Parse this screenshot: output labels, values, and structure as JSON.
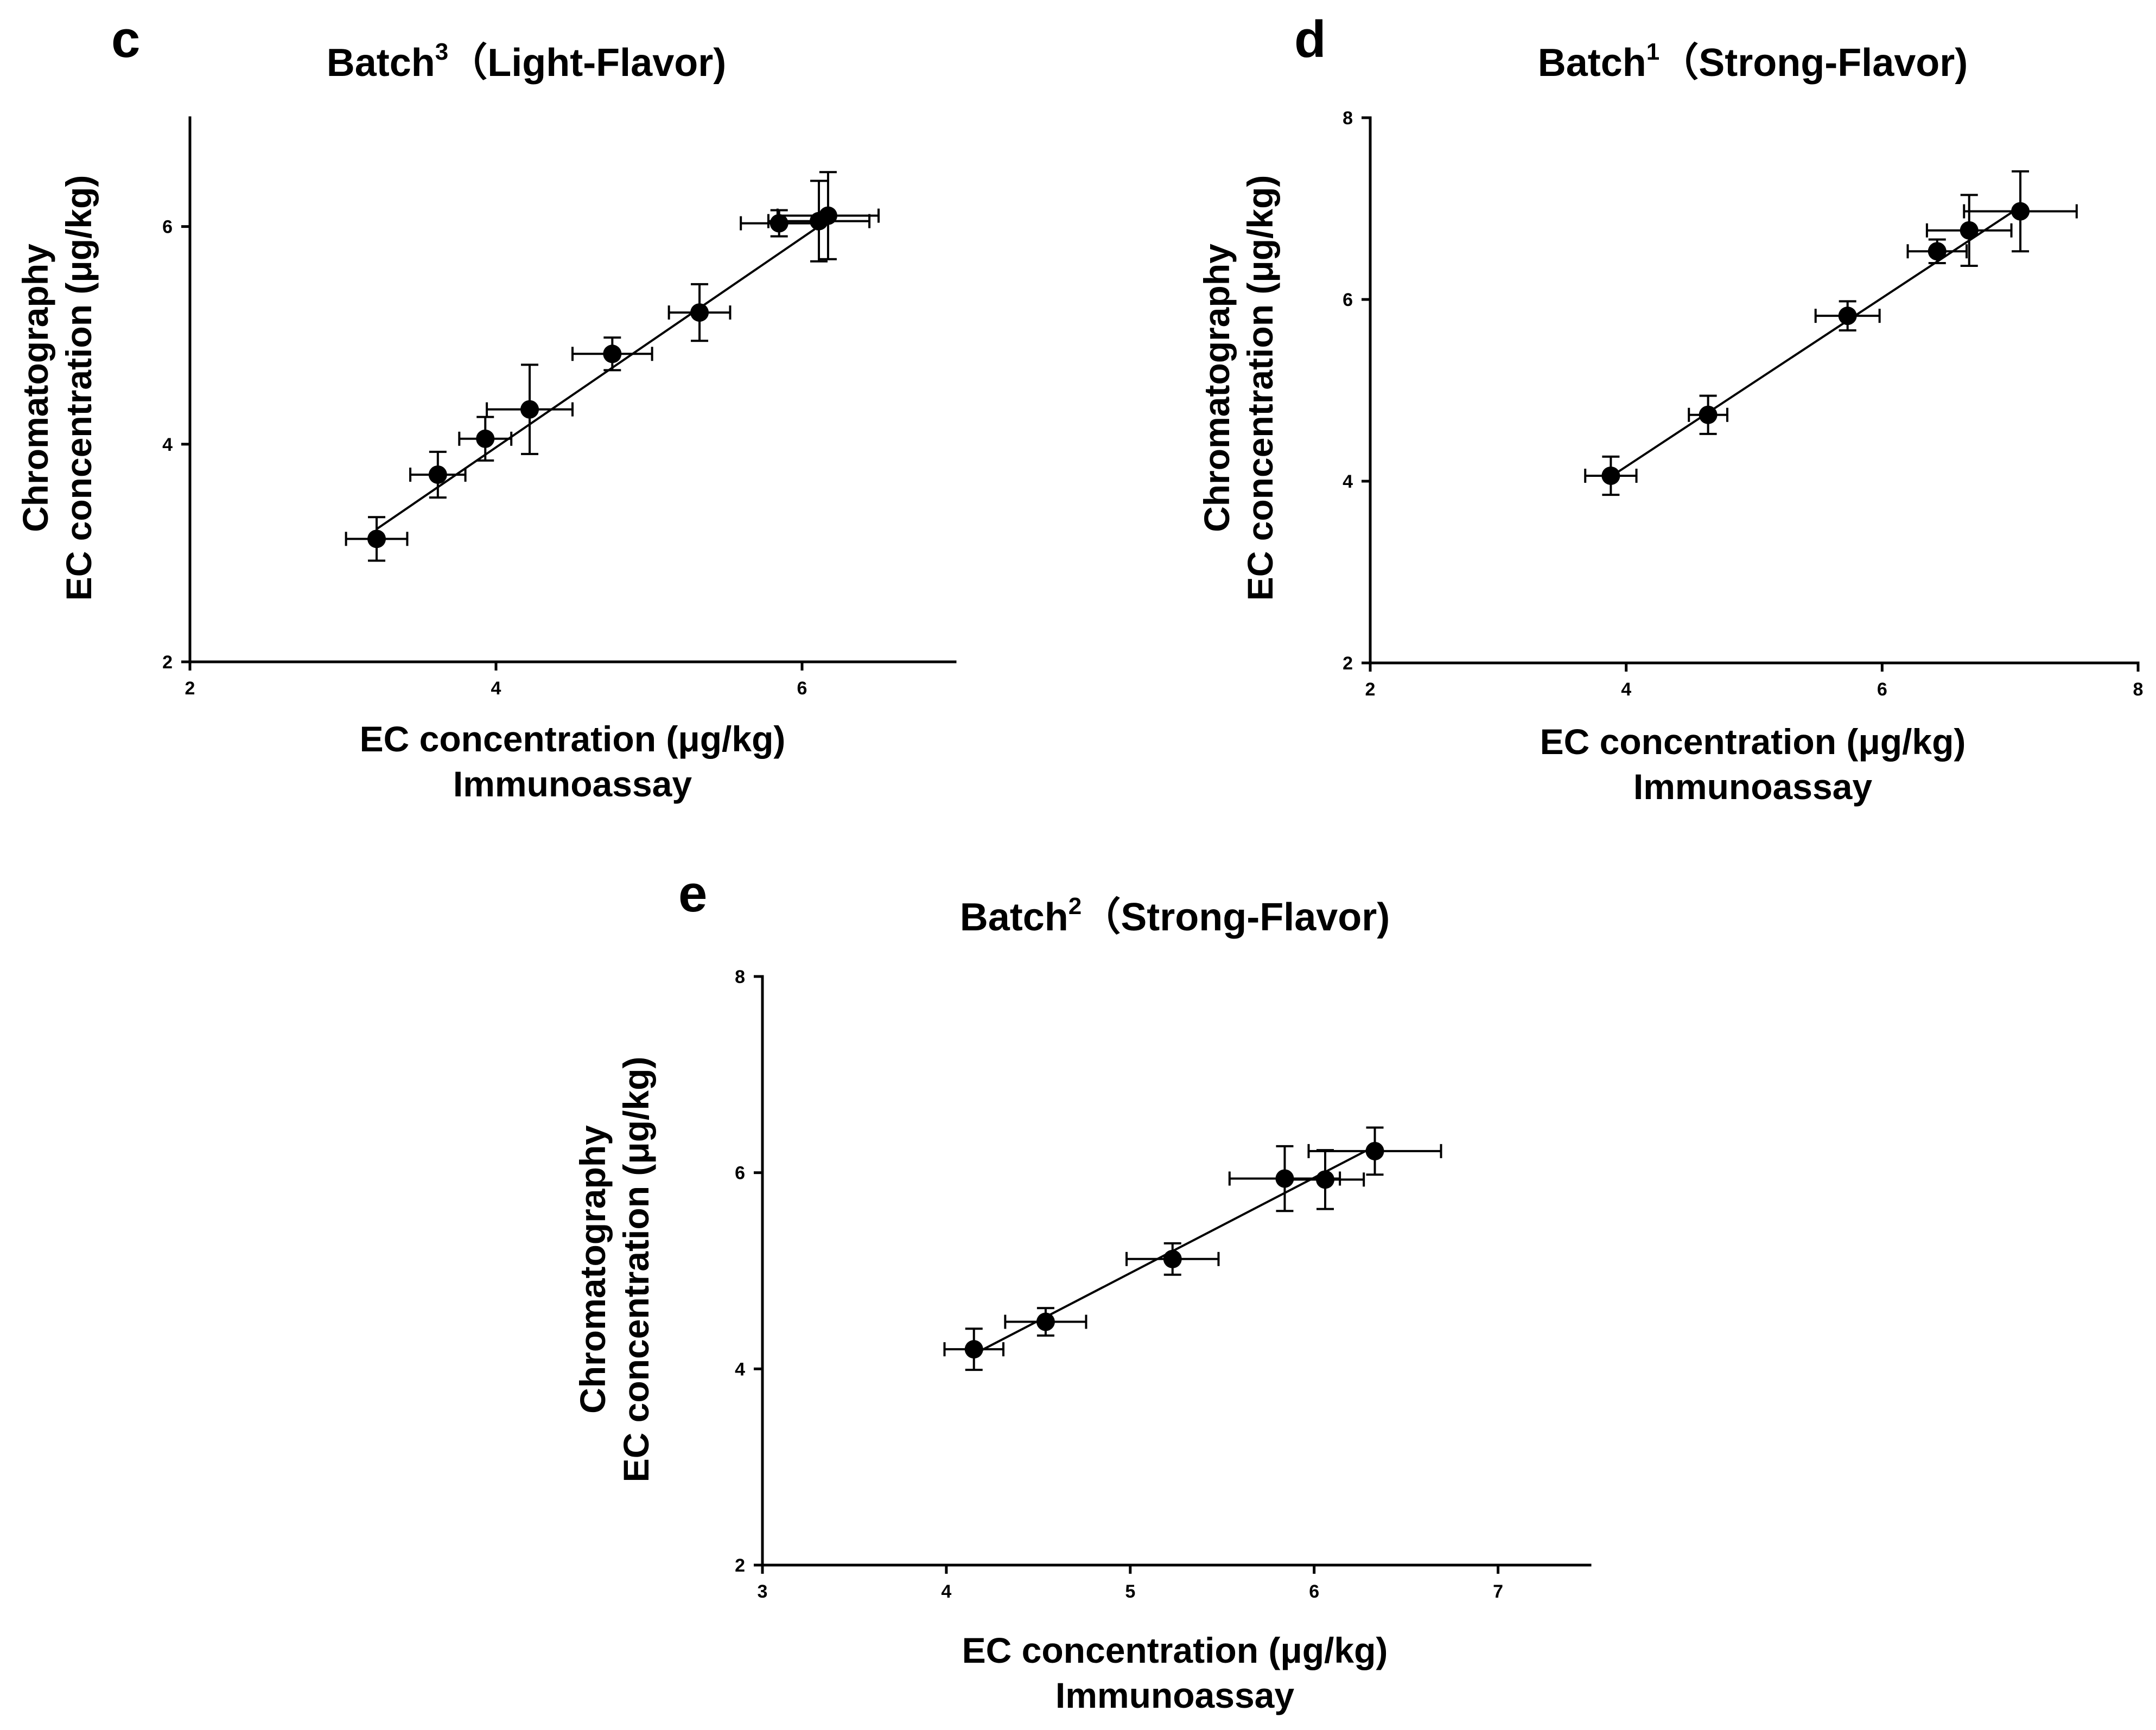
{
  "chart_data": [
    {
      "panel": "c",
      "type": "scatter",
      "title": "Batch",
      "title_superscript": "3",
      "title_suffix": "（Light-Flavor)",
      "xlabel": [
        "EC concentration (μg/kg)",
        "Immunoassay"
      ],
      "ylabel": [
        "Chromatography",
        "EC concentration (μg/kg)"
      ],
      "xlim": [
        2,
        7
      ],
      "ylim": [
        2,
        7
      ],
      "xticks": [
        2,
        4,
        6
      ],
      "yticks": [
        2,
        4,
        6
      ],
      "xtick_labels": [
        "2",
        "4",
        "6"
      ],
      "ytick_labels": [
        "2",
        "4",
        "6"
      ],
      "points": [
        {
          "x": 3.22,
          "y": 3.13,
          "xerr": 0.2,
          "yerr": 0.2
        },
        {
          "x": 3.62,
          "y": 3.72,
          "xerr": 0.18,
          "yerr": 0.21
        },
        {
          "x": 3.93,
          "y": 4.05,
          "xerr": 0.17,
          "yerr": 0.2
        },
        {
          "x": 4.22,
          "y": 4.32,
          "xerr": 0.28,
          "yerr": 0.41
        },
        {
          "x": 4.76,
          "y": 4.83,
          "xerr": 0.26,
          "yerr": 0.15
        },
        {
          "x": 5.33,
          "y": 5.21,
          "xerr": 0.2,
          "yerr": 0.26
        },
        {
          "x": 5.85,
          "y": 6.03,
          "xerr": 0.25,
          "yerr": 0.12
        },
        {
          "x": 6.11,
          "y": 6.05,
          "xerr": 0.33,
          "yerr": 0.37
        },
        {
          "x": 6.17,
          "y": 6.1,
          "xerr": 0.33,
          "yerr": 0.4
        }
      ],
      "fit": {
        "x": [
          3.22,
          6.17
        ],
        "y": [
          3.22,
          6.06
        ]
      }
    },
    {
      "panel": "d",
      "type": "scatter",
      "title": "Batch",
      "title_superscript": "1",
      "title_suffix": "（Strong-Flavor)",
      "xlabel": [
        "EC concentration (μg/kg)",
        "Immunoassay"
      ],
      "ylabel": [
        "Chromatography",
        "EC concentration (μg/kg)"
      ],
      "xlim": [
        2,
        8
      ],
      "ylim": [
        2,
        8
      ],
      "xticks": [
        2,
        4,
        6,
        8
      ],
      "yticks": [
        2,
        4,
        6,
        8
      ],
      "xtick_labels": [
        "2",
        "4",
        "6",
        "8"
      ],
      "ytick_labels": [
        "2",
        "4",
        "6",
        "8"
      ],
      "points": [
        {
          "x": 3.88,
          "y": 4.06,
          "xerr": 0.2,
          "yerr": 0.21
        },
        {
          "x": 4.64,
          "y": 4.73,
          "xerr": 0.15,
          "yerr": 0.21
        },
        {
          "x": 5.73,
          "y": 5.82,
          "xerr": 0.25,
          "yerr": 0.16
        },
        {
          "x": 6.43,
          "y": 6.53,
          "xerr": 0.23,
          "yerr": 0.13
        },
        {
          "x": 6.68,
          "y": 6.76,
          "xerr": 0.33,
          "yerr": 0.39
        },
        {
          "x": 7.08,
          "y": 6.97,
          "xerr": 0.44,
          "yerr": 0.44
        }
      ],
      "fit": {
        "x": [
          3.88,
          7.08
        ],
        "y": [
          4.05,
          7.02
        ]
      }
    },
    {
      "panel": "e",
      "type": "scatter",
      "title": "Batch",
      "title_superscript": "2",
      "title_suffix": "（Strong-Flavor)",
      "xlabel": [
        "EC concentration (μg/kg)",
        "Immunoassay"
      ],
      "ylabel": [
        "Chromatography",
        "EC concentration (μg/kg)"
      ],
      "xlim": [
        3,
        7.5
      ],
      "ylim": [
        2,
        8
      ],
      "xticks": [
        3,
        4,
        5,
        6,
        7
      ],
      "yticks": [
        2,
        4,
        6,
        8
      ],
      "xtick_labels": [
        "3",
        "4",
        "5",
        "6",
        "7"
      ],
      "ytick_labels": [
        "2",
        "4",
        "6",
        "8"
      ],
      "points": [
        {
          "x": 4.15,
          "y": 4.2,
          "xerr": 0.16,
          "yerr": 0.21
        },
        {
          "x": 4.54,
          "y": 4.48,
          "xerr": 0.22,
          "yerr": 0.14
        },
        {
          "x": 5.23,
          "y": 5.12,
          "xerr": 0.25,
          "yerr": 0.16
        },
        {
          "x": 5.84,
          "y": 5.94,
          "xerr": 0.3,
          "yerr": 0.33
        },
        {
          "x": 6.06,
          "y": 5.93,
          "xerr": 0.21,
          "yerr": 0.3
        },
        {
          "x": 6.33,
          "y": 6.22,
          "xerr": 0.36,
          "yerr": 0.24
        }
      ],
      "fit": {
        "x": [
          4.15,
          6.33
        ],
        "y": [
          4.15,
          6.27
        ]
      }
    }
  ]
}
